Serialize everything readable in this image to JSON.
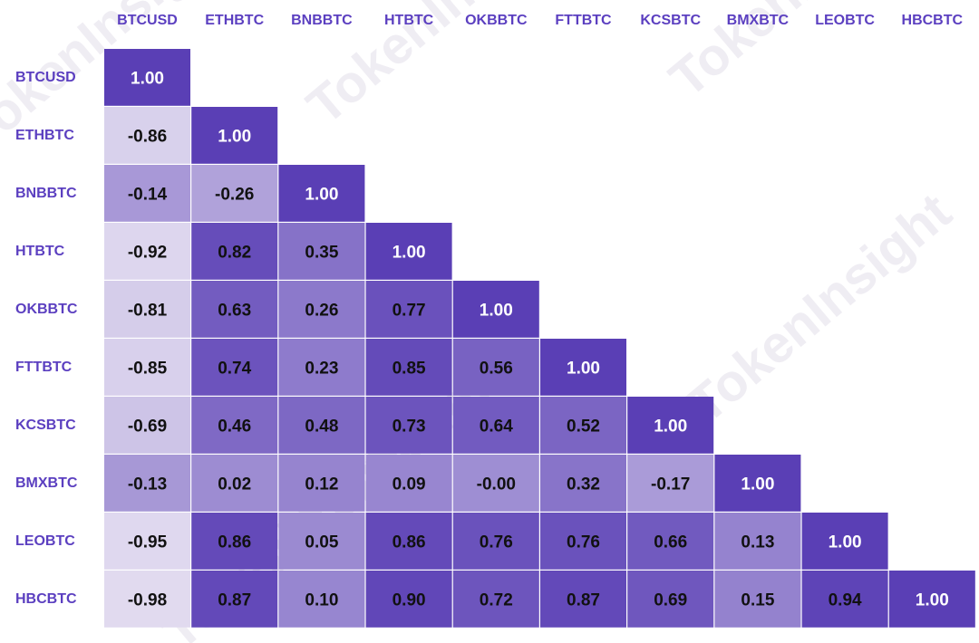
{
  "chart_data": {
    "type": "heatmap",
    "title": "",
    "labels": [
      "BTCUSD",
      "ETHBTC",
      "BNBBTC",
      "HTBTC",
      "OKBBTC",
      "FTTBTC",
      "KCSBTC",
      "BMXBTC",
      "LEOBTC",
      "HBCBTC"
    ],
    "matrix": [
      [
        "1.00"
      ],
      [
        "-0.86",
        "1.00"
      ],
      [
        "-0.14",
        "-0.26",
        "1.00"
      ],
      [
        "-0.92",
        "0.82",
        "0.35",
        "1.00"
      ],
      [
        "-0.81",
        "0.63",
        "0.26",
        "0.77",
        "1.00"
      ],
      [
        "-0.85",
        "0.74",
        "0.23",
        "0.85",
        "0.56",
        "1.00"
      ],
      [
        "-0.69",
        "0.46",
        "0.48",
        "0.73",
        "0.64",
        "0.52",
        "1.00"
      ],
      [
        "-0.13",
        "0.02",
        "0.12",
        "0.09",
        "-0.00",
        "0.32",
        "-0.17",
        "1.00"
      ],
      [
        "-0.95",
        "0.86",
        "0.05",
        "0.86",
        "0.76",
        "0.76",
        "0.66",
        "0.13",
        "1.00"
      ],
      [
        "-0.98",
        "0.87",
        "0.10",
        "0.90",
        "0.72",
        "0.87",
        "0.69",
        "0.15",
        "0.94",
        "1.00"
      ]
    ],
    "layout": "lower-triangle",
    "color_scale": {
      "low": "#e2dcf0",
      "high": "#5a3fb5"
    },
    "label_color": "#5b3fc0",
    "text_dark": "#111111",
    "text_light": "#ffffff"
  },
  "watermark": {
    "text": "TokenInsight",
    "color": "#efedf3"
  }
}
